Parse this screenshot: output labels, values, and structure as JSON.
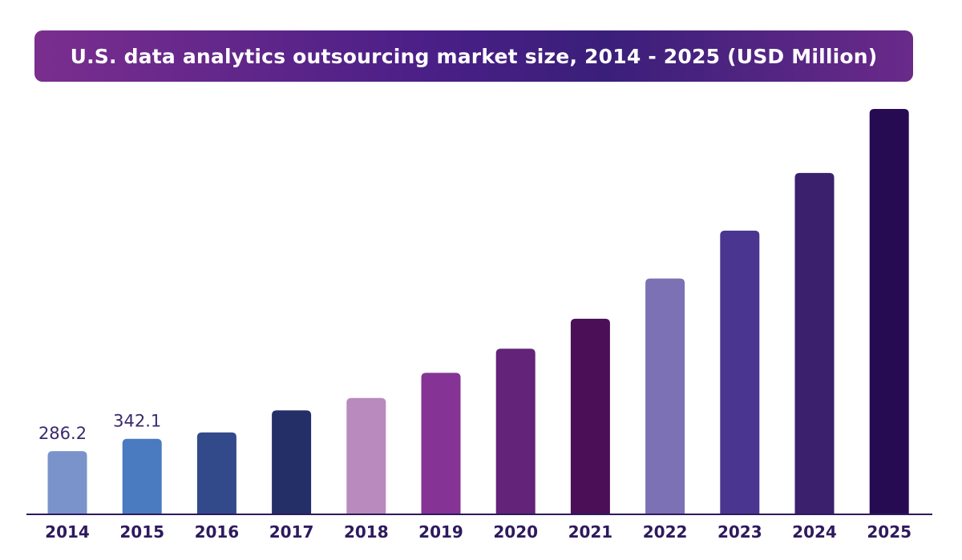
{
  "header": {
    "title": "U.S. data analytics outsourcing market size, 2014 - 2025 (USD Million)"
  },
  "chart_data": {
    "type": "bar",
    "title": "U.S. data analytics outsourcing market size, 2014 - 2025 (USD Million)",
    "xlabel": "",
    "ylabel": "",
    "categories": [
      "2014",
      "2015",
      "2016",
      "2017",
      "2018",
      "2019",
      "2020",
      "2021",
      "2022",
      "2023",
      "2024",
      "2025"
    ],
    "values": [
      286.2,
      342.1,
      371,
      471,
      527,
      641,
      750,
      886,
      1068,
      1285,
      1546,
      1836
    ],
    "data_labels": [
      "286.2",
      "342.1",
      "",
      "",
      "",
      "",
      "",
      "",
      "",
      "",
      "",
      ""
    ],
    "colors": [
      "#7b93cb",
      "#4a7abf",
      "#324a8a",
      "#232f66",
      "#b98abd",
      "#853395",
      "#622378",
      "#4a0f57",
      "#7b71b4",
      "#4a3590",
      "#3b206e",
      "#260b53"
    ],
    "ylim": [
      0,
      1836
    ],
    "grid": false,
    "legend": "none"
  }
}
